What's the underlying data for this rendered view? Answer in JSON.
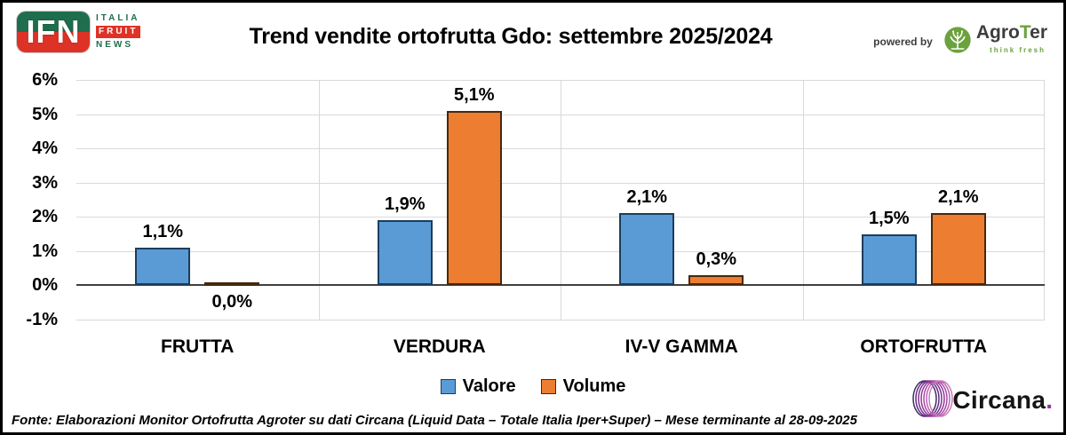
{
  "header": {
    "title": "Trend vendite ortofrutta Gdo: settembre 2025/2024",
    "ifn_logo": {
      "acronym": "IFN",
      "line1": "ITALIA",
      "line2": "FRUIT",
      "line3": "NEWS"
    },
    "powered_by": "powered by",
    "agroter": {
      "agro": "Agro",
      "t": "T",
      "er": "er",
      "tagline": "think fresh"
    }
  },
  "chart_data": {
    "type": "bar",
    "title": "Trend vendite ortofrutta Gdo: settembre 2025/2024",
    "categories": [
      "FRUTTA",
      "VERDURA",
      "IV-V GAMMA",
      "ORTOFRUTTA"
    ],
    "series": [
      {
        "name": "Valore",
        "values": [
          1.1,
          1.9,
          2.1,
          1.5
        ],
        "labels": [
          "1,1%",
          "1,9%",
          "2,1%",
          "1,5%"
        ],
        "color": "#5B9BD5",
        "border_color": "#1C3D5C"
      },
      {
        "name": "Volume",
        "values": [
          0.0,
          5.1,
          0.3,
          2.1
        ],
        "labels": [
          "0,0%",
          "5,1%",
          "0,3%",
          "2,1%"
        ],
        "color": "#ED7D31",
        "border_color": "#45290D"
      }
    ],
    "xlabel": "",
    "ylabel": "",
    "ylim": [
      -1,
      6
    ],
    "y_ticks": [
      {
        "label": "6%",
        "value": 6
      },
      {
        "label": "5%",
        "value": 5
      },
      {
        "label": "4%",
        "value": 4
      },
      {
        "label": "3%",
        "value": 3
      },
      {
        "label": "2%",
        "value": 2
      },
      {
        "label": "1%",
        "value": 1
      },
      {
        "label": "0%",
        "value": 0
      },
      {
        "label": "-1%",
        "value": -1
      }
    ],
    "grid": true,
    "zero_line": true,
    "legend_position": "bottom"
  },
  "legend": {
    "items": [
      {
        "label": "Valore",
        "color": "#5B9BD5",
        "border_color": "#1C3D5C"
      },
      {
        "label": "Volume",
        "color": "#ED7D31",
        "border_color": "#45290D"
      }
    ]
  },
  "footer": {
    "source": "Fonte: Elaborazioni Monitor Ortofrutta Agroter su dati Circana (Liquid Data – Totale Italia Iper+Super) – Mese terminante al 28-09-2025",
    "circana_name": "Circana",
    "circana_dot": "."
  },
  "colors": {
    "grid": "#D9D9D9",
    "zero_line": "#404040",
    "ifn_green": "#1E6E4E",
    "ifn_red": "#DF3227",
    "agroter_green": "#6CA23E",
    "circana_purple": "#93359C",
    "text": "#000000"
  }
}
